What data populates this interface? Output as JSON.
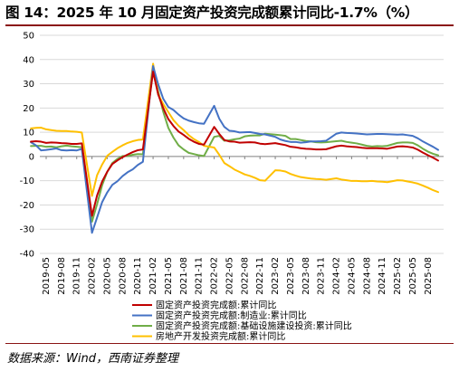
{
  "title": "图 14：2025 年 10 月固定资产投资完成额累计同比-1.7%（%）",
  "source": "数据来源：Wind，西南证券整理",
  "chart_data": {
    "type": "line",
    "ylim": [
      -40,
      50
    ],
    "yticks": [
      50,
      40,
      30,
      20,
      10,
      0,
      -10,
      -20,
      -30,
      -40
    ],
    "x_tick_labels": [
      "2019-05",
      "2019-08",
      "2019-11",
      "2020-02",
      "2020-05",
      "2020-08",
      "2020-11",
      "2021-02",
      "2021-05",
      "2021-08",
      "2021-11",
      "2022-02",
      "2022-05",
      "2022-08",
      "2022-11",
      "2023-02",
      "2023-05",
      "2023-08",
      "2023-11",
      "2024-02",
      "2024-05",
      "2024-08",
      "2024-11",
      "2025-02",
      "2025-05",
      "2025-08"
    ],
    "x": [
      "2019-02",
      "2019-03",
      "2019-04",
      "2019-05",
      "2019-06",
      "2019-07",
      "2019-08",
      "2019-09",
      "2019-10",
      "2019-11",
      "2019-12",
      "2020-02",
      "2020-03",
      "2020-04",
      "2020-05",
      "2020-06",
      "2020-07",
      "2020-08",
      "2020-09",
      "2020-10",
      "2020-11",
      "2020-12",
      "2021-02",
      "2021-03",
      "2021-04",
      "2021-05",
      "2021-06",
      "2021-07",
      "2021-08",
      "2021-09",
      "2021-10",
      "2021-11",
      "2021-12",
      "2022-02",
      "2022-03",
      "2022-04",
      "2022-05",
      "2022-06",
      "2022-07",
      "2022-08",
      "2022-09",
      "2022-10",
      "2022-11",
      "2022-12",
      "2023-02",
      "2023-03",
      "2023-04",
      "2023-05",
      "2023-06",
      "2023-07",
      "2023-08",
      "2023-09",
      "2023-10",
      "2023-11",
      "2023-12",
      "2024-02",
      "2024-03",
      "2024-04",
      "2024-05",
      "2024-06",
      "2024-07",
      "2024-08",
      "2024-09",
      "2024-10",
      "2024-11",
      "2024-12",
      "2025-02",
      "2025-03",
      "2025-04",
      "2025-05",
      "2025-06",
      "2025-07",
      "2025-08",
      "2025-09",
      "2025-10"
    ],
    "series": [
      {
        "name": "固定资产投资完成额:累计同比",
        "color": "#c00000",
        "values": [
          6.1,
          6.3,
          6.1,
          5.6,
          5.8,
          5.7,
          5.5,
          5.4,
          5.2,
          5.2,
          5.4,
          -24.5,
          -16.1,
          -10.3,
          -6.3,
          -3.1,
          -1.6,
          -0.3,
          0.8,
          1.8,
          2.6,
          2.9,
          35.0,
          25.6,
          19.9,
          15.4,
          12.6,
          10.3,
          8.9,
          7.3,
          6.1,
          5.2,
          4.9,
          12.2,
          9.3,
          6.8,
          6.2,
          6.1,
          5.7,
          5.8,
          5.9,
          5.8,
          5.3,
          5.1,
          5.5,
          5.1,
          4.7,
          4.0,
          3.8,
          3.4,
          3.2,
          3.1,
          2.9,
          2.9,
          3.0,
          4.2,
          4.5,
          4.2,
          4.0,
          3.9,
          3.6,
          3.4,
          3.4,
          3.4,
          3.3,
          3.2,
          4.1,
          4.2,
          4.0,
          3.7,
          2.8,
          1.6,
          0.5,
          -0.5,
          -1.7
        ]
      },
      {
        "name": "固定资产投资完成额:制造业:累计同比",
        "color": "#4472c4",
        "values": [
          5.9,
          4.6,
          2.5,
          2.7,
          3.0,
          3.3,
          2.6,
          2.5,
          2.6,
          2.5,
          3.1,
          -31.5,
          -25.2,
          -18.8,
          -14.8,
          -11.7,
          -10.2,
          -8.1,
          -6.5,
          -5.3,
          -3.5,
          -2.2,
          37.3,
          29.8,
          23.8,
          20.4,
          19.2,
          17.3,
          15.7,
          14.8,
          14.2,
          13.7,
          13.5,
          20.9,
          15.6,
          12.2,
          10.6,
          10.4,
          9.9,
          10.0,
          10.1,
          9.7,
          9.3,
          9.1,
          8.1,
          7.0,
          6.4,
          6.0,
          6.0,
          5.7,
          5.9,
          6.2,
          6.2,
          6.3,
          6.5,
          9.4,
          9.9,
          9.7,
          9.6,
          9.5,
          9.3,
          9.1,
          9.2,
          9.3,
          9.3,
          9.2,
          9.0,
          9.1,
          8.8,
          8.5,
          7.5,
          6.2,
          5.1,
          4.0,
          2.7
        ]
      },
      {
        "name": "固定资产投资完成额:基础设施建设投资:累计同比",
        "color": "#70ad47",
        "values": [
          4.3,
          4.4,
          4.4,
          4.0,
          4.1,
          3.8,
          4.2,
          4.5,
          4.2,
          4.0,
          3.8,
          -26.9,
          -19.7,
          -11.8,
          -6.3,
          -2.7,
          -1.0,
          0.2,
          0.2,
          0.7,
          1.0,
          0.9,
          36.6,
          26.9,
          18.4,
          11.8,
          7.8,
          4.6,
          2.9,
          1.5,
          1.0,
          0.5,
          0.2,
          8.1,
          8.5,
          6.5,
          6.7,
          7.1,
          7.4,
          8.3,
          8.6,
          8.7,
          8.7,
          9.4,
          9.0,
          8.8,
          8.5,
          7.2,
          7.2,
          6.8,
          6.4,
          6.2,
          5.9,
          5.8,
          5.9,
          6.3,
          6.5,
          6.0,
          5.7,
          5.4,
          4.9,
          4.4,
          4.1,
          4.3,
          4.2,
          4.4,
          5.6,
          5.8,
          5.8,
          5.6,
          4.6,
          3.2,
          2.0,
          1.1,
          0.5
        ]
      },
      {
        "name": "房地产开发投资完成额:累计同比",
        "color": "#ffc000",
        "values": [
          11.6,
          11.8,
          11.9,
          11.2,
          10.9,
          10.6,
          10.5,
          10.5,
          10.3,
          10.2,
          9.9,
          -16.3,
          -7.7,
          -3.3,
          0.3,
          1.9,
          3.4,
          4.6,
          5.6,
          6.3,
          6.8,
          7.0,
          38.3,
          25.6,
          21.6,
          18.3,
          15.0,
          12.7,
          10.9,
          8.8,
          7.2,
          6.0,
          4.4,
          3.7,
          0.7,
          -2.7,
          -4.0,
          -5.4,
          -6.4,
          -7.4,
          -8.0,
          -8.8,
          -9.8,
          -10.0,
          -5.7,
          -5.8,
          -6.2,
          -7.2,
          -7.9,
          -8.5,
          -8.8,
          -9.1,
          -9.3,
          -9.4,
          -9.6,
          -9.0,
          -9.5,
          -9.8,
          -10.1,
          -10.1,
          -10.2,
          -10.2,
          -10.1,
          -10.3,
          -10.4,
          -10.6,
          -9.8,
          -9.9,
          -10.3,
          -10.7,
          -11.2,
          -12.0,
          -12.9,
          -13.9,
          -14.7
        ]
      }
    ]
  }
}
